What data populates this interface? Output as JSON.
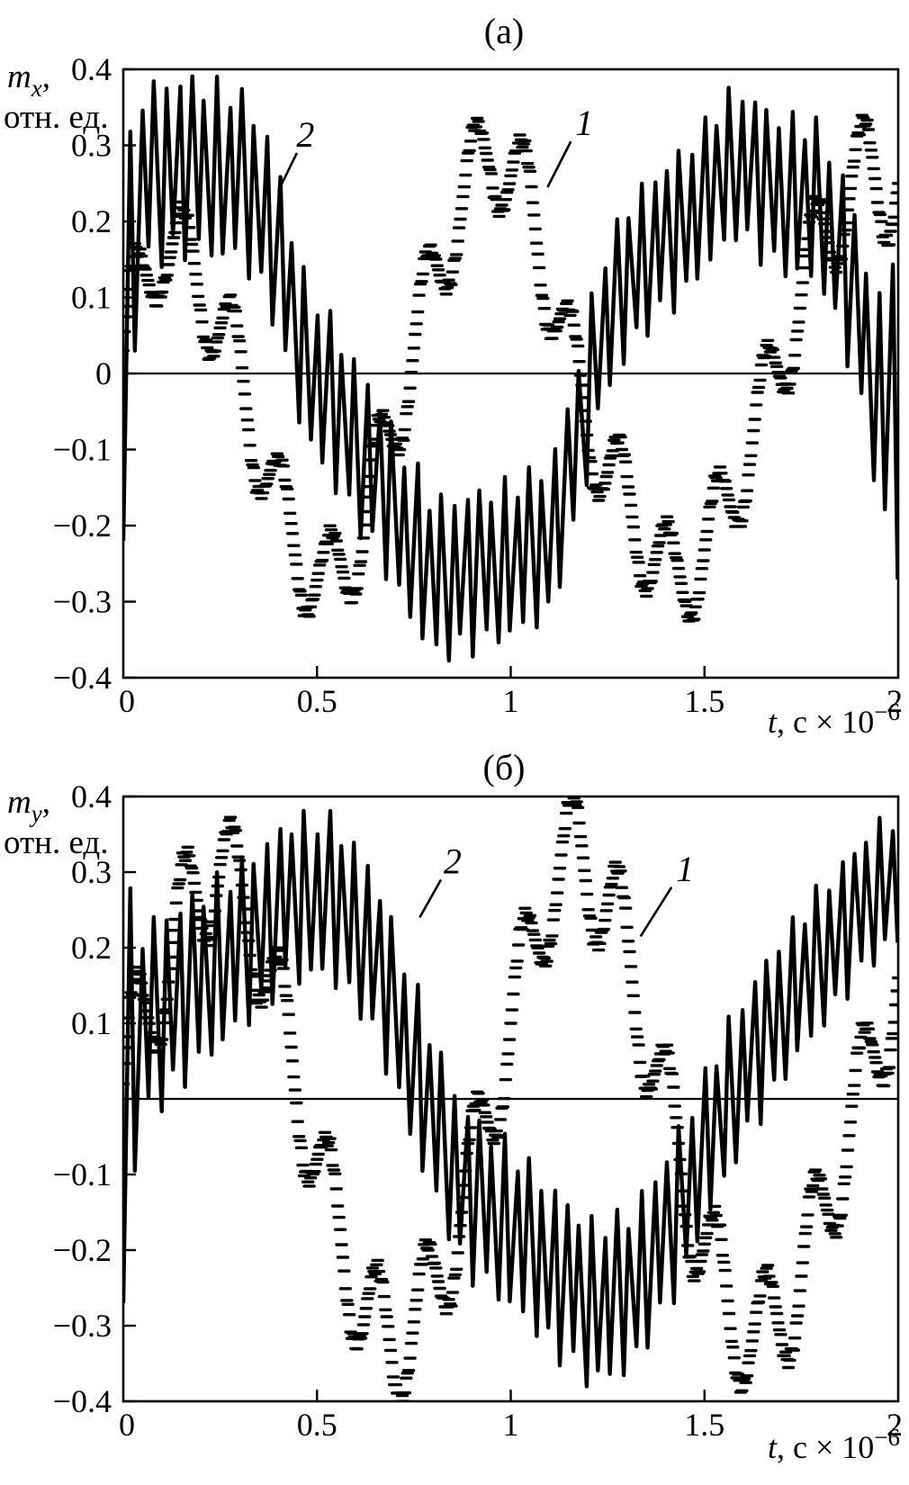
{
  "chart_data": [
    {
      "type": "line",
      "panel_label": "(а)",
      "xlabel": "t, с × 10⁻⁶",
      "xlabel_parts": {
        "t": "t",
        "main": ", с × 10",
        "sup": "−6"
      },
      "ylabel": "mₓ, отн. ед.",
      "ylabel_parts": {
        "sym": "m",
        "sub": "x",
        "comma": ",",
        "unit": "отн. ед."
      },
      "xlim": [
        0,
        2
      ],
      "ylim": [
        -0.4,
        0.4
      ],
      "grid": false,
      "legend": "inline-numbered-labels",
      "xticks": [
        {
          "v": 0,
          "l": "0"
        },
        {
          "v": 0.5,
          "l": "0.5"
        },
        {
          "v": 1,
          "l": "1"
        },
        {
          "v": 1.5,
          "l": "1.5"
        },
        {
          "v": 2,
          "l": "2"
        }
      ],
      "yticks": [
        {
          "v": 0.4,
          "l": "0.4"
        },
        {
          "v": 0.3,
          "l": "0.3"
        },
        {
          "v": 0.2,
          "l": "0.2"
        },
        {
          "v": 0.1,
          "l": "0.1"
        },
        {
          "v": 0,
          "l": "0"
        },
        {
          "v": -0.1,
          "l": "−0.1"
        },
        {
          "v": -0.2,
          "l": "−0.2"
        },
        {
          "v": -0.3,
          "l": "−0.3"
        },
        {
          "v": -0.4,
          "l": "−0.4"
        }
      ],
      "zero_line": true,
      "series": [
        {
          "name": "1",
          "style": "dashed",
          "fast_cycles": 16,
          "label_pos": [
            1.19,
            0.33
          ],
          "leader": [
            [
              1.155,
              0.305
            ],
            [
              1.095,
              0.245
            ]
          ],
          "center": [
            [
              0,
              0.03
            ],
            [
              0.1,
              0.18
            ],
            [
              0.2,
              0.12
            ],
            [
              0.3,
              0.0
            ],
            [
              0.4,
              -0.18
            ],
            [
              0.52,
              -0.29
            ],
            [
              0.62,
              -0.2
            ],
            [
              0.73,
              0.0
            ],
            [
              0.85,
              0.2
            ],
            [
              0.95,
              0.3
            ],
            [
              1.05,
              0.22
            ],
            [
              1.15,
              0.02
            ],
            [
              1.25,
              -0.13
            ],
            [
              1.42,
              -0.28
            ],
            [
              1.52,
              -0.22
            ],
            [
              1.65,
              -0.05
            ],
            [
              1.8,
              0.18
            ],
            [
              1.92,
              0.27
            ],
            [
              2,
              0.25
            ]
          ],
          "amp": [
            [
              0,
              0.11
            ],
            [
              0.05,
              0.07
            ],
            [
              1.9,
              0.07
            ],
            [
              2,
              0.09
            ]
          ]
        },
        {
          "name": "2",
          "style": "solid",
          "fast_cycles": 62,
          "label_pos": [
            0.47,
            0.315
          ],
          "leader": [
            [
              0.448,
              0.29
            ],
            [
              0.4,
              0.24
            ]
          ],
          "center": [
            [
              0,
              0.02
            ],
            [
              0.05,
              0.26
            ],
            [
              0.15,
              0.275
            ],
            [
              0.3,
              0.26
            ],
            [
              0.38,
              0.2
            ],
            [
              0.46,
              0.03
            ],
            [
              0.55,
              -0.05
            ],
            [
              0.65,
              -0.13
            ],
            [
              0.72,
              -0.2
            ],
            [
              0.8,
              -0.27
            ],
            [
              0.9,
              -0.26
            ],
            [
              1.0,
              -0.245
            ],
            [
              1.1,
              -0.22
            ],
            [
              1.17,
              -0.1
            ],
            [
              1.23,
              0.05
            ],
            [
              1.32,
              0.14
            ],
            [
              1.45,
              0.2
            ],
            [
              1.58,
              0.28
            ],
            [
              1.68,
              0.24
            ],
            [
              1.8,
              0.22
            ],
            [
              1.88,
              0.12
            ],
            [
              1.93,
              0.0
            ],
            [
              1.97,
              -0.05
            ],
            [
              2,
              0.0
            ]
          ],
          "amp": [
            [
              0,
              0.24
            ],
            [
              0.04,
              0.11
            ],
            [
              0.5,
              0.1
            ],
            [
              1.5,
              0.09
            ],
            [
              1.85,
              0.1
            ],
            [
              1.96,
              0.12
            ],
            [
              2,
              0.26
            ]
          ]
        }
      ]
    },
    {
      "type": "line",
      "panel_label": "(б)",
      "xlabel": "t, с × 10⁻⁶",
      "xlabel_parts": {
        "t": "t",
        "main": ", с × 10",
        "sup": "−6"
      },
      "ylabel": "mᵧ, отн. ед.",
      "ylabel_parts": {
        "sym": "m",
        "sub": "y",
        "comma": ",",
        "unit": "отн. ед."
      },
      "xlim": [
        0,
        2
      ],
      "ylim": [
        -0.4,
        0.4
      ],
      "grid": false,
      "legend": "inline-numbered-labels",
      "xticks": [
        {
          "v": 0,
          "l": "0"
        },
        {
          "v": 0.5,
          "l": "0.5"
        },
        {
          "v": 1,
          "l": "1"
        },
        {
          "v": 1.5,
          "l": "1.5"
        },
        {
          "v": 2,
          "l": "2"
        }
      ],
      "yticks": [
        {
          "v": 0.4,
          "l": "0.4"
        },
        {
          "v": 0.3,
          "l": "0.3"
        },
        {
          "v": 0.2,
          "l": "0.2"
        },
        {
          "v": 0.1,
          "l": "0.1"
        },
        {
          "v": 0,
          "l": ""
        },
        {
          "v": -0.1,
          "l": "−0.1"
        },
        {
          "v": -0.2,
          "l": "−0.2"
        },
        {
          "v": -0.3,
          "l": "−0.3"
        },
        {
          "v": -0.4,
          "l": "−0.4"
        }
      ],
      "zero_line": true,
      "series": [
        {
          "name": "1",
          "style": "dashed",
          "fast_cycles": 16,
          "label_pos": [
            1.45,
            0.305
          ],
          "leader": [
            [
              1.415,
              0.28
            ],
            [
              1.335,
              0.215
            ]
          ],
          "center": [
            [
              0,
              0.02
            ],
            [
              0.07,
              0.12
            ],
            [
              0.17,
              0.26
            ],
            [
              0.25,
              0.31
            ],
            [
              0.33,
              0.24
            ],
            [
              0.42,
              0.08
            ],
            [
              0.52,
              -0.12
            ],
            [
              0.62,
              -0.28
            ],
            [
              0.7,
              -0.33
            ],
            [
              0.8,
              -0.26
            ],
            [
              0.9,
              -0.1
            ],
            [
              1.0,
              0.1
            ],
            [
              1.1,
              0.28
            ],
            [
              1.17,
              0.33
            ],
            [
              1.27,
              0.24
            ],
            [
              1.37,
              0.05
            ],
            [
              1.47,
              -0.15
            ],
            [
              1.57,
              -0.29
            ],
            [
              1.64,
              -0.32
            ],
            [
              1.74,
              -0.25
            ],
            [
              1.85,
              -0.08
            ],
            [
              1.95,
              0.08
            ],
            [
              2,
              0.16
            ]
          ],
          "amp": [
            [
              0,
              0.12
            ],
            [
              0.06,
              0.08
            ],
            [
              2,
              0.08
            ]
          ]
        },
        {
          "name": "2",
          "style": "solid",
          "fast_cycles": 62,
          "label_pos": [
            0.85,
            0.315
          ],
          "leader": [
            [
              0.82,
              0.29
            ],
            [
              0.765,
              0.24
            ]
          ],
          "center": [
            [
              0,
              0.0
            ],
            [
              0.05,
              0.1
            ],
            [
              0.15,
              0.14
            ],
            [
              0.3,
              0.2
            ],
            [
              0.42,
              0.26
            ],
            [
              0.52,
              0.27
            ],
            [
              0.62,
              0.22
            ],
            [
              0.7,
              0.12
            ],
            [
              0.78,
              0.0
            ],
            [
              0.88,
              -0.12
            ],
            [
              1.0,
              -0.17
            ],
            [
              1.1,
              -0.22
            ],
            [
              1.2,
              -0.27
            ],
            [
              1.3,
              -0.26
            ],
            [
              1.4,
              -0.18
            ],
            [
              1.5,
              -0.07
            ],
            [
              1.58,
              0.02
            ],
            [
              1.7,
              0.12
            ],
            [
              1.82,
              0.2
            ],
            [
              1.95,
              0.28
            ],
            [
              2,
              0.29
            ]
          ],
          "amp": [
            [
              0,
              0.27
            ],
            [
              0.04,
              0.12
            ],
            [
              0.3,
              0.1
            ],
            [
              1.2,
              0.1
            ],
            [
              1.7,
              0.09
            ],
            [
              2,
              0.08
            ]
          ]
        }
      ]
    }
  ]
}
